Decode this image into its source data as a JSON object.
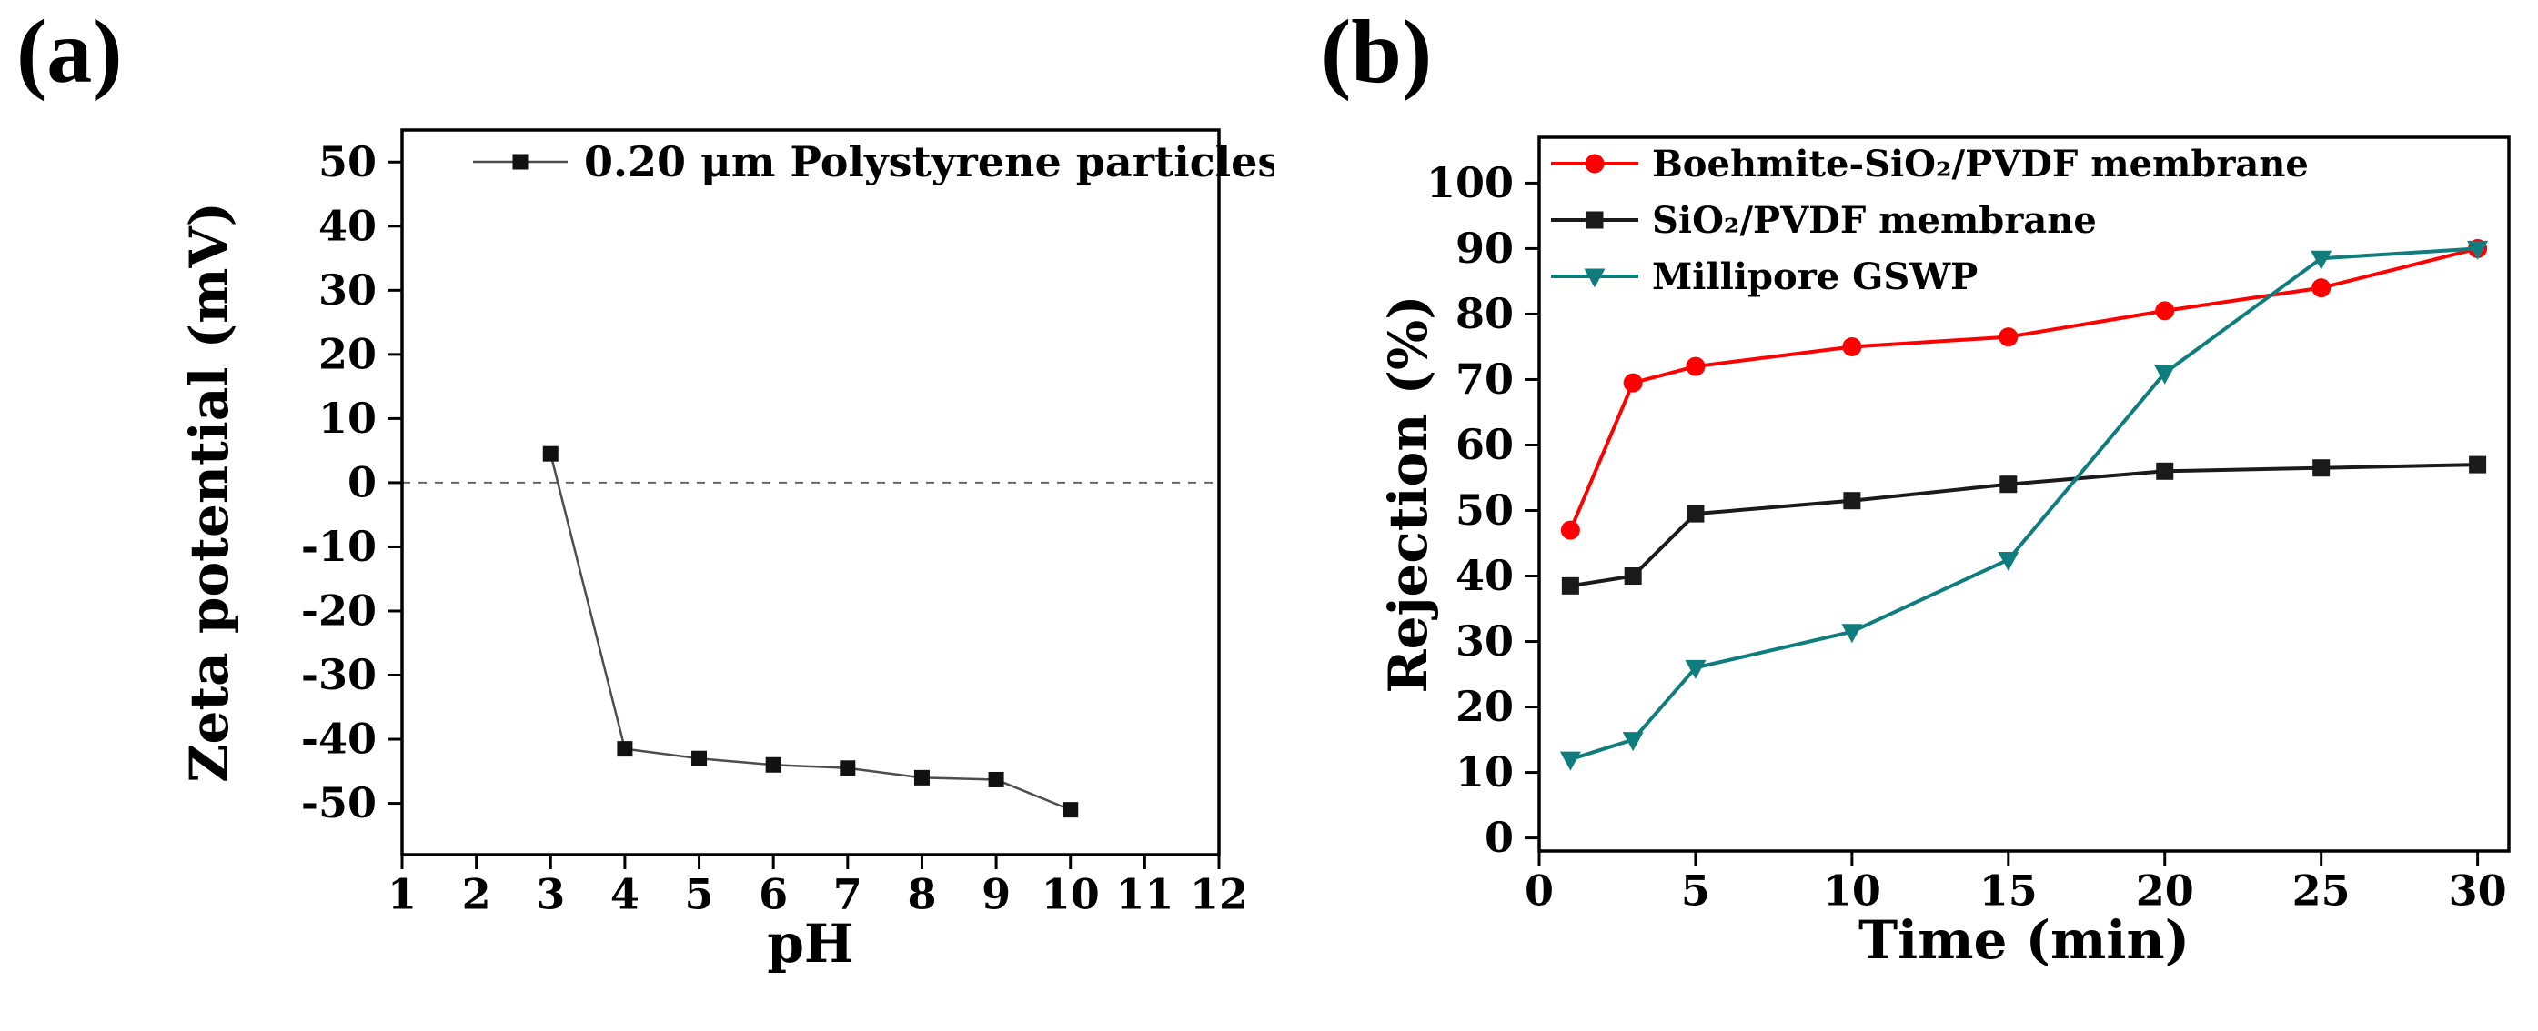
{
  "figure": {
    "background": "#ffffff",
    "panels": [
      {
        "label": "(a)"
      },
      {
        "label": "(b)"
      }
    ]
  },
  "chart_data": [
    {
      "id": "a",
      "type": "line",
      "title": "",
      "xlabel": "pH",
      "ylabel": "Zeta potential (mV)",
      "xlim": [
        1,
        12
      ],
      "ylim": [
        -58,
        55
      ],
      "xticks": [
        1,
        2,
        3,
        4,
        5,
        6,
        7,
        8,
        9,
        10,
        11,
        12
      ],
      "yticks": [
        -50,
        -40,
        -30,
        -20,
        -10,
        0,
        10,
        20,
        30,
        40,
        50
      ],
      "grid": false,
      "legend_position": "top-center-inside",
      "zero_line": {
        "y": 0,
        "style": "dashed",
        "color": "#666666"
      },
      "series": [
        {
          "name": "0.20 μm  Polystyrene particles",
          "color": "#111111",
          "line_color": "#4d4d4d",
          "marker": "square",
          "x": [
            3,
            4,
            5,
            6,
            7,
            8,
            9,
            10
          ],
          "y": [
            4.5,
            -41.5,
            -43,
            -44,
            -44.5,
            -46,
            -46.3,
            -51
          ]
        }
      ]
    },
    {
      "id": "b",
      "type": "line",
      "title": "",
      "xlabel": "Time (min)",
      "ylabel": "Rejection (%)",
      "xlim": [
        0,
        31
      ],
      "ylim": [
        -2,
        107
      ],
      "xticks": [
        0,
        5,
        10,
        15,
        20,
        25,
        30
      ],
      "yticks": [
        0,
        10,
        20,
        30,
        40,
        50,
        60,
        70,
        80,
        90,
        100
      ],
      "grid": false,
      "legend_position": "top-left-inside",
      "series": [
        {
          "name": "Boehmite-SiO₂/PVDF membrane",
          "color": "#ff0000",
          "marker": "circle",
          "x": [
            1,
            3,
            5,
            10,
            15,
            20,
            25,
            30
          ],
          "y": [
            47,
            69.5,
            72,
            75,
            76.5,
            80.5,
            84,
            90
          ]
        },
        {
          "name": "SiO₂/PVDF membrane",
          "color": "#1a1a1a",
          "marker": "square",
          "x": [
            1,
            3,
            5,
            10,
            15,
            20,
            25,
            30
          ],
          "y": [
            38.5,
            40,
            49.5,
            51.5,
            54,
            56,
            56.5,
            57
          ]
        },
        {
          "name": "Millipore GSWP",
          "color": "#0f7d7d",
          "marker": "triangle-down",
          "x": [
            1,
            3,
            5,
            10,
            15,
            20,
            25,
            30
          ],
          "y": [
            12,
            15,
            26,
            31.5,
            42.5,
            71,
            88.5,
            90
          ]
        }
      ]
    }
  ]
}
